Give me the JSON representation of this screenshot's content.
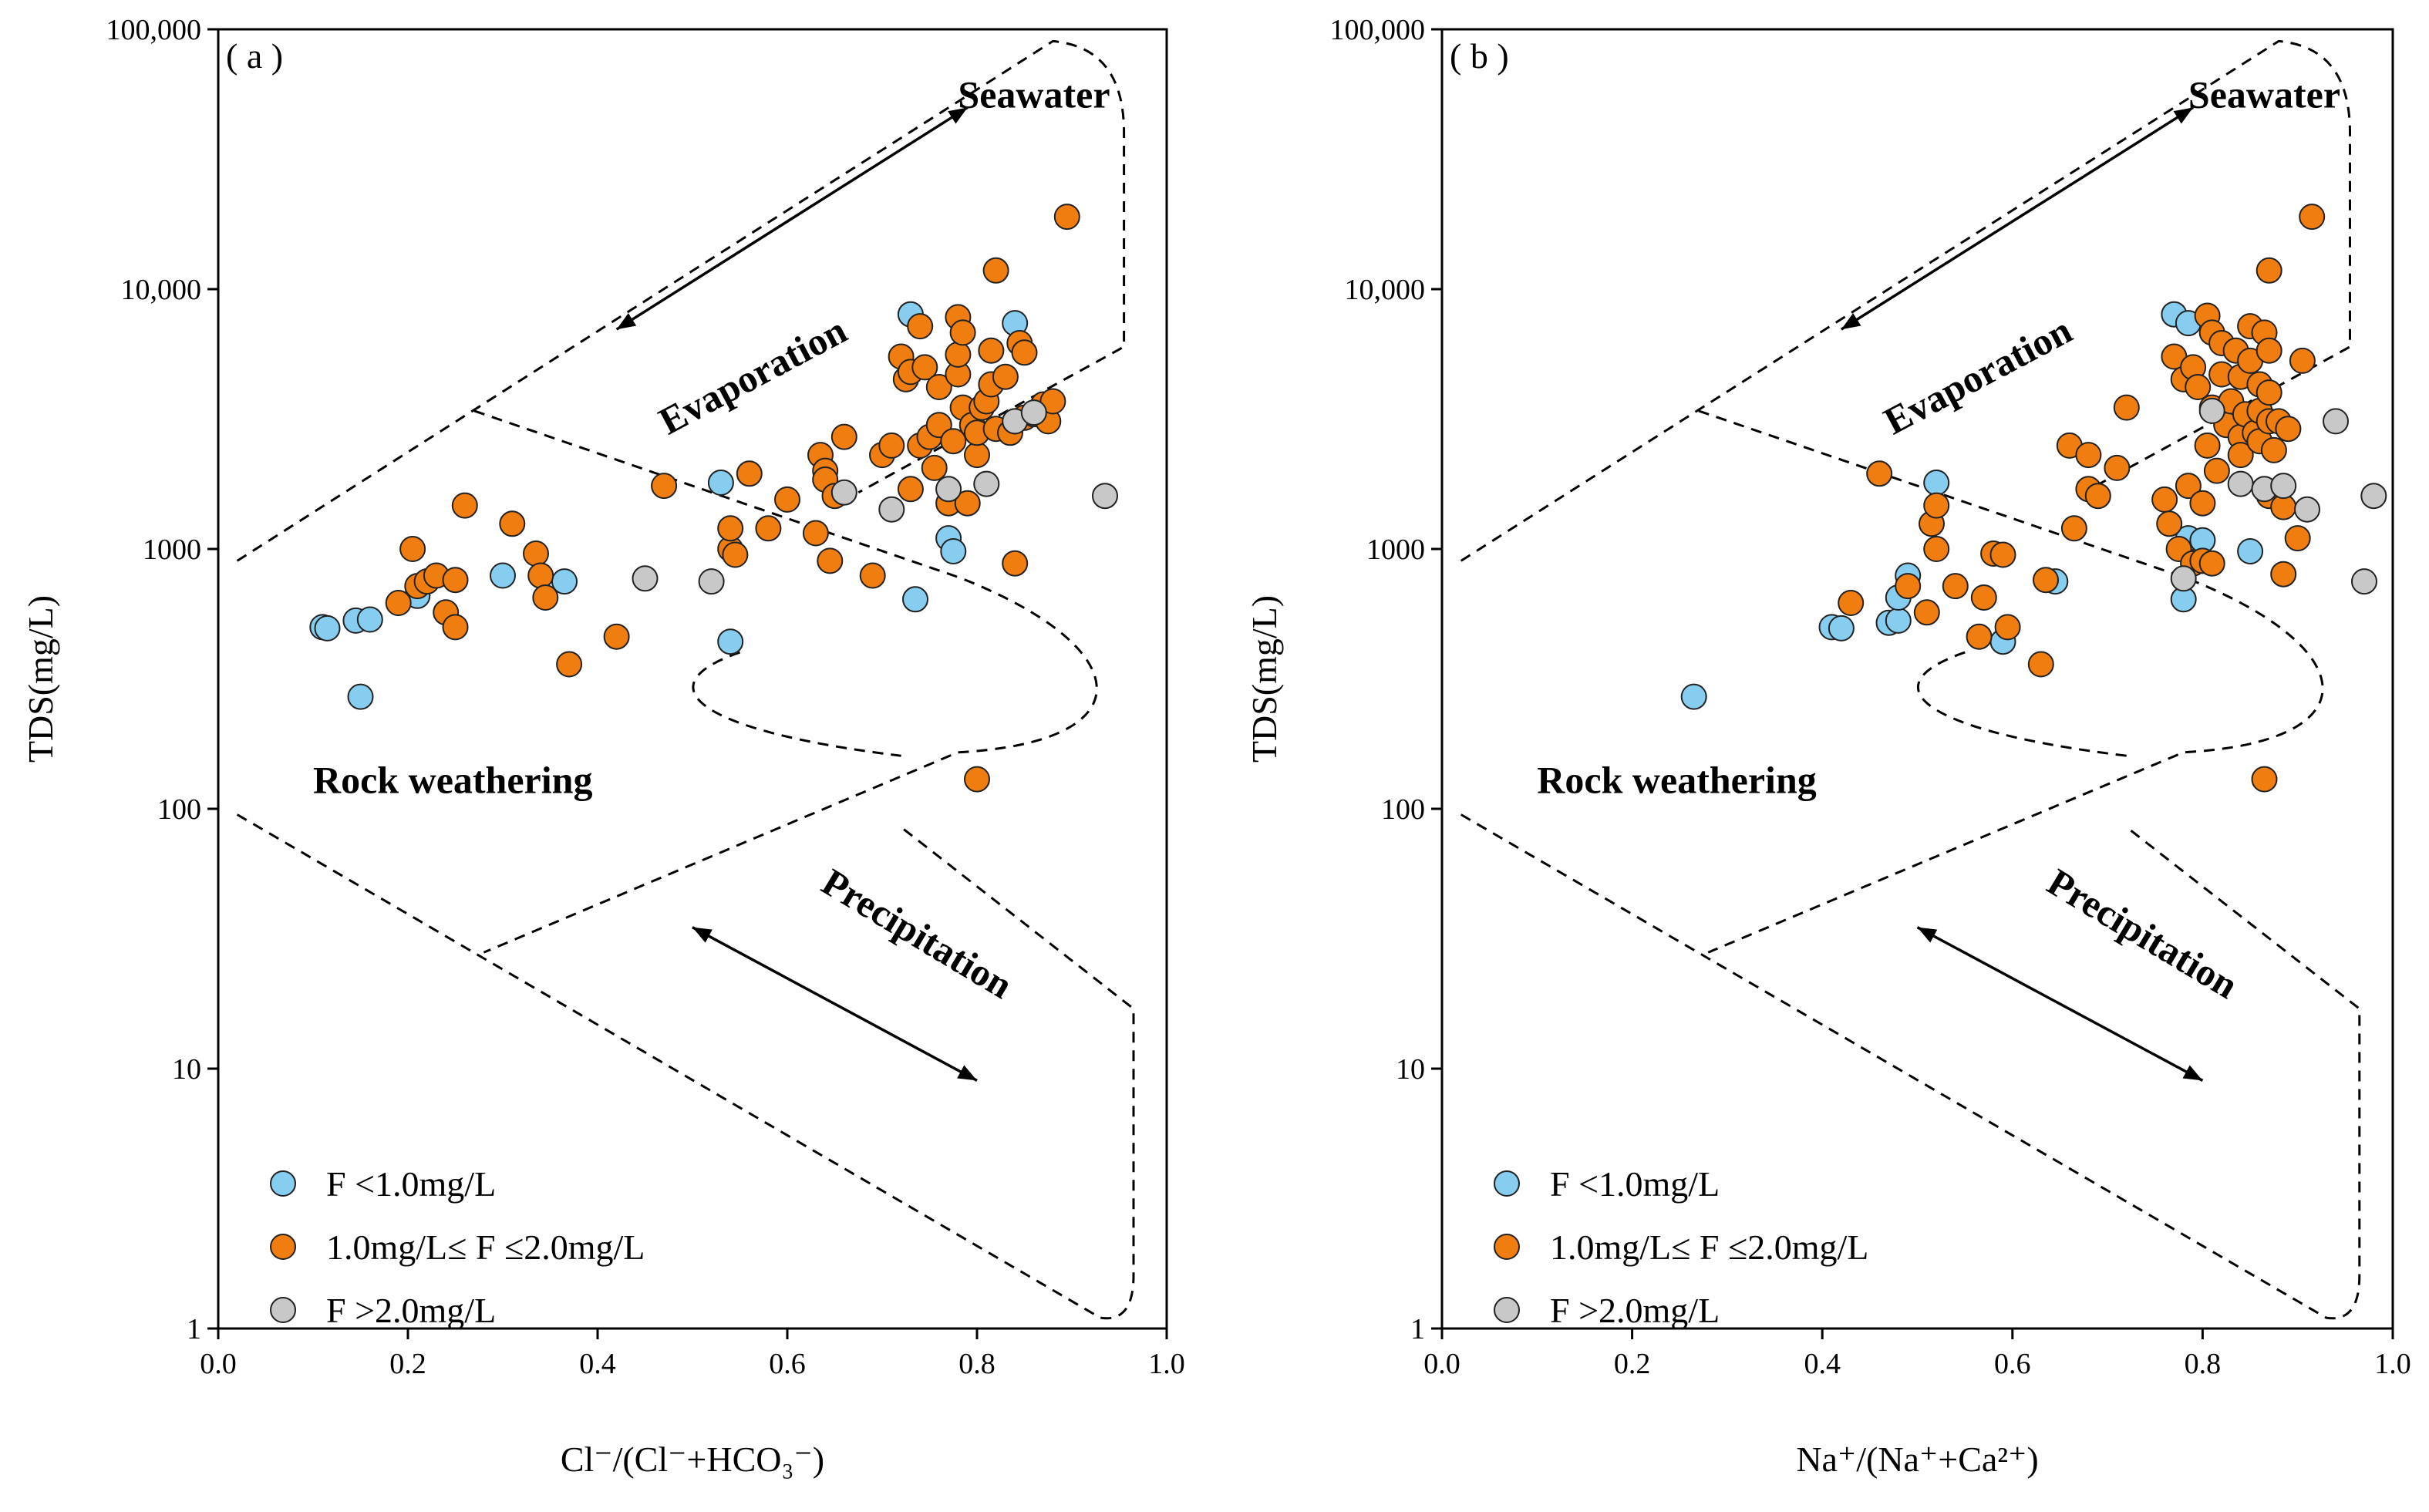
{
  "colors": {
    "low": "#86cdf0",
    "mid": "#f07d10",
    "high": "#c8c8c8"
  },
  "legend": [
    {
      "key": "low",
      "label": "F <1.0mg/L"
    },
    {
      "key": "mid",
      "label": "1.0mg/L≤ F ≤2.0mg/L"
    },
    {
      "key": "high",
      "label": "F >2.0mg/L"
    }
  ],
  "region_labels": {
    "seawater": "Seawater",
    "evaporation": "Evaporation",
    "rock_weathering": "Rock weathering",
    "precipitation": "Precipitation"
  },
  "chart_data": [
    {
      "type": "scatter",
      "panel_label": "( a )",
      "xlabel": "Cl⁻/(Cl⁻+HCO₃⁻)",
      "ylabel": "TDS(mg/L)",
      "xlim": [
        0,
        1
      ],
      "ylim": [
        1,
        100000
      ],
      "y_scale": "log",
      "x_ticks": [
        "0.0",
        "0.2",
        "0.4",
        "0.6",
        "0.8",
        "1.0"
      ],
      "y_ticks": [
        "1",
        "10",
        "100",
        "1000",
        "10,000",
        "100,000"
      ],
      "series": [
        {
          "name": "F <1.0mg/L",
          "key": "low",
          "points": [
            [
              0.11,
              500
            ],
            [
              0.115,
              495
            ],
            [
              0.145,
              530
            ],
            [
              0.16,
              535
            ],
            [
              0.15,
              270
            ],
            [
              0.21,
              660
            ],
            [
              0.3,
              790
            ],
            [
              0.365,
              750
            ],
            [
              0.53,
              1800
            ],
            [
              0.54,
              440
            ],
            [
              0.73,
              8000
            ],
            [
              0.735,
              640
            ],
            [
              0.77,
              1100
            ],
            [
              0.775,
              980
            ],
            [
              0.84,
              7400
            ]
          ]
        },
        {
          "name": "1.0mg/L≤ F ≤2.0mg/L",
          "key": "mid",
          "points": [
            [
              0.19,
              620
            ],
            [
              0.205,
              1000
            ],
            [
              0.21,
              720
            ],
            [
              0.22,
              750
            ],
            [
              0.23,
              790
            ],
            [
              0.24,
              570
            ],
            [
              0.25,
              500
            ],
            [
              0.25,
              760
            ],
            [
              0.26,
              1470
            ],
            [
              0.31,
              1250
            ],
            [
              0.335,
              960
            ],
            [
              0.34,
              790
            ],
            [
              0.345,
              650
            ],
            [
              0.37,
              360
            ],
            [
              0.42,
              460
            ],
            [
              0.47,
              1750
            ],
            [
              0.54,
              1000
            ],
            [
              0.545,
              950
            ],
            [
              0.54,
              1200
            ],
            [
              0.56,
              1950
            ],
            [
              0.58,
              1200
            ],
            [
              0.6,
              1550
            ],
            [
              0.63,
              1150
            ],
            [
              0.635,
              2300
            ],
            [
              0.64,
              2000
            ],
            [
              0.64,
              1850
            ],
            [
              0.645,
              900
            ],
            [
              0.65,
              1600
            ],
            [
              0.66,
              2700
            ],
            [
              0.69,
              790
            ],
            [
              0.7,
              2300
            ],
            [
              0.71,
              2500
            ],
            [
              0.72,
              5500
            ],
            [
              0.725,
              4500
            ],
            [
              0.73,
              1700
            ],
            [
              0.73,
              4800
            ],
            [
              0.74,
              7200
            ],
            [
              0.74,
              2500
            ],
            [
              0.745,
              5000
            ],
            [
              0.75,
              2700
            ],
            [
              0.755,
              2050
            ],
            [
              0.76,
              3000
            ],
            [
              0.76,
              4200
            ],
            [
              0.77,
              1500
            ],
            [
              0.775,
              2600
            ],
            [
              0.78,
              4700
            ],
            [
              0.78,
              5600
            ],
            [
              0.785,
              3500
            ],
            [
              0.78,
              7800
            ],
            [
              0.785,
              6800
            ],
            [
              0.79,
              1500
            ],
            [
              0.795,
              3000
            ],
            [
              0.8,
              2300
            ],
            [
              0.8,
              2800
            ],
            [
              0.805,
              3500
            ],
            [
              0.81,
              3700
            ],
            [
              0.815,
              4300
            ],
            [
              0.815,
              5800
            ],
            [
              0.82,
              11800
            ],
            [
              0.82,
              2900
            ],
            [
              0.83,
              4600
            ],
            [
              0.835,
              2800
            ],
            [
              0.84,
              3100
            ],
            [
              0.845,
              6200
            ],
            [
              0.85,
              3200
            ],
            [
              0.85,
              5700
            ],
            [
              0.86,
              3300
            ],
            [
              0.87,
              3600
            ],
            [
              0.875,
              3100
            ],
            [
              0.88,
              3700
            ],
            [
              0.895,
              19000
            ],
            [
              0.8,
              130
            ],
            [
              0.84,
              880
            ]
          ]
        },
        {
          "name": "F >2.0mg/L",
          "key": "high",
          "points": [
            [
              0.45,
              770
            ],
            [
              0.52,
              750
            ],
            [
              0.66,
              1650
            ],
            [
              0.71,
              1420
            ],
            [
              0.77,
              1700
            ],
            [
              0.81,
              1780
            ],
            [
              0.84,
              3100
            ],
            [
              0.86,
              3350
            ],
            [
              0.935,
              1600
            ]
          ]
        }
      ]
    },
    {
      "type": "scatter",
      "panel_label": "( b )",
      "xlabel": "Na⁺/(Na⁺+Ca²⁺)",
      "ylabel": "TDS(mg/L)",
      "xlim": [
        0,
        1
      ],
      "ylim": [
        1,
        100000
      ],
      "y_scale": "log",
      "x_ticks": [
        "0.0",
        "0.2",
        "0.4",
        "0.6",
        "0.8",
        "1.0"
      ],
      "y_ticks": [
        "1",
        "10",
        "100",
        "1000",
        "10,000",
        "100,000"
      ],
      "series": [
        {
          "name": "F <1.0mg/L",
          "key": "low",
          "points": [
            [
              0.265,
              270
            ],
            [
              0.41,
              500
            ],
            [
              0.42,
              495
            ],
            [
              0.47,
              520
            ],
            [
              0.48,
              530
            ],
            [
              0.48,
              650
            ],
            [
              0.49,
              790
            ],
            [
              0.52,
              1800
            ],
            [
              0.59,
              440
            ],
            [
              0.645,
              750
            ],
            [
              0.77,
              8000
            ],
            [
              0.785,
              7400
            ],
            [
              0.78,
              640
            ],
            [
              0.785,
              1100
            ],
            [
              0.8,
              1080
            ],
            [
              0.85,
              980
            ]
          ]
        },
        {
          "name": "1.0mg/L≤ F ≤2.0mg/L",
          "key": "mid",
          "points": [
            [
              0.43,
              620
            ],
            [
              0.46,
              1950
            ],
            [
              0.49,
              720
            ],
            [
              0.51,
              570
            ],
            [
              0.515,
              1250
            ],
            [
              0.52,
              1000
            ],
            [
              0.52,
              1470
            ],
            [
              0.54,
              720
            ],
            [
              0.565,
              460
            ],
            [
              0.57,
              650
            ],
            [
              0.58,
              960
            ],
            [
              0.59,
              950
            ],
            [
              0.595,
              500
            ],
            [
              0.63,
              360
            ],
            [
              0.635,
              760
            ],
            [
              0.66,
              2500
            ],
            [
              0.665,
              1200
            ],
            [
              0.68,
              2300
            ],
            [
              0.68,
              1700
            ],
            [
              0.69,
              1600
            ],
            [
              0.71,
              2050
            ],
            [
              0.72,
              3500
            ],
            [
              0.76,
              1550
            ],
            [
              0.765,
              1250
            ],
            [
              0.77,
              5500
            ],
            [
              0.775,
              1000
            ],
            [
              0.78,
              4500
            ],
            [
              0.785,
              1750
            ],
            [
              0.79,
              5000
            ],
            [
              0.79,
              880
            ],
            [
              0.795,
              4200
            ],
            [
              0.8,
              900
            ],
            [
              0.8,
              1500
            ],
            [
              0.805,
              7900
            ],
            [
              0.805,
              2500
            ],
            [
              0.81,
              3500
            ],
            [
              0.81,
              6800
            ],
            [
              0.81,
              880
            ],
            [
              0.815,
              2000
            ],
            [
              0.82,
              4700
            ],
            [
              0.82,
              6200
            ],
            [
              0.825,
              3000
            ],
            [
              0.83,
              3700
            ],
            [
              0.835,
              5800
            ],
            [
              0.84,
              2700
            ],
            [
              0.84,
              4600
            ],
            [
              0.84,
              2300
            ],
            [
              0.845,
              3300
            ],
            [
              0.85,
              7200
            ],
            [
              0.85,
              5300
            ],
            [
              0.855,
              2800
            ],
            [
              0.86,
              3400
            ],
            [
              0.86,
              4300
            ],
            [
              0.86,
              2600
            ],
            [
              0.865,
              6800
            ],
            [
              0.87,
              1600
            ],
            [
              0.87,
              5800
            ],
            [
              0.87,
              4000
            ],
            [
              0.87,
              3100
            ],
            [
              0.875,
              2400
            ],
            [
              0.88,
              3100
            ],
            [
              0.885,
              1450
            ],
            [
              0.885,
              800
            ],
            [
              0.89,
              2900
            ],
            [
              0.9,
              1100
            ],
            [
              0.905,
              5300
            ],
            [
              0.87,
              11800
            ],
            [
              0.915,
              19000
            ],
            [
              0.865,
              130
            ]
          ]
        },
        {
          "name": "F >2.0mg/L",
          "key": "high",
          "points": [
            [
              0.78,
              770
            ],
            [
              0.81,
              3400
            ],
            [
              0.84,
              1780
            ],
            [
              0.865,
              1700
            ],
            [
              0.885,
              1750
            ],
            [
              0.91,
              1420
            ],
            [
              0.94,
              3100
            ],
            [
              0.97,
              750
            ],
            [
              0.98,
              1600
            ]
          ]
        }
      ]
    }
  ]
}
